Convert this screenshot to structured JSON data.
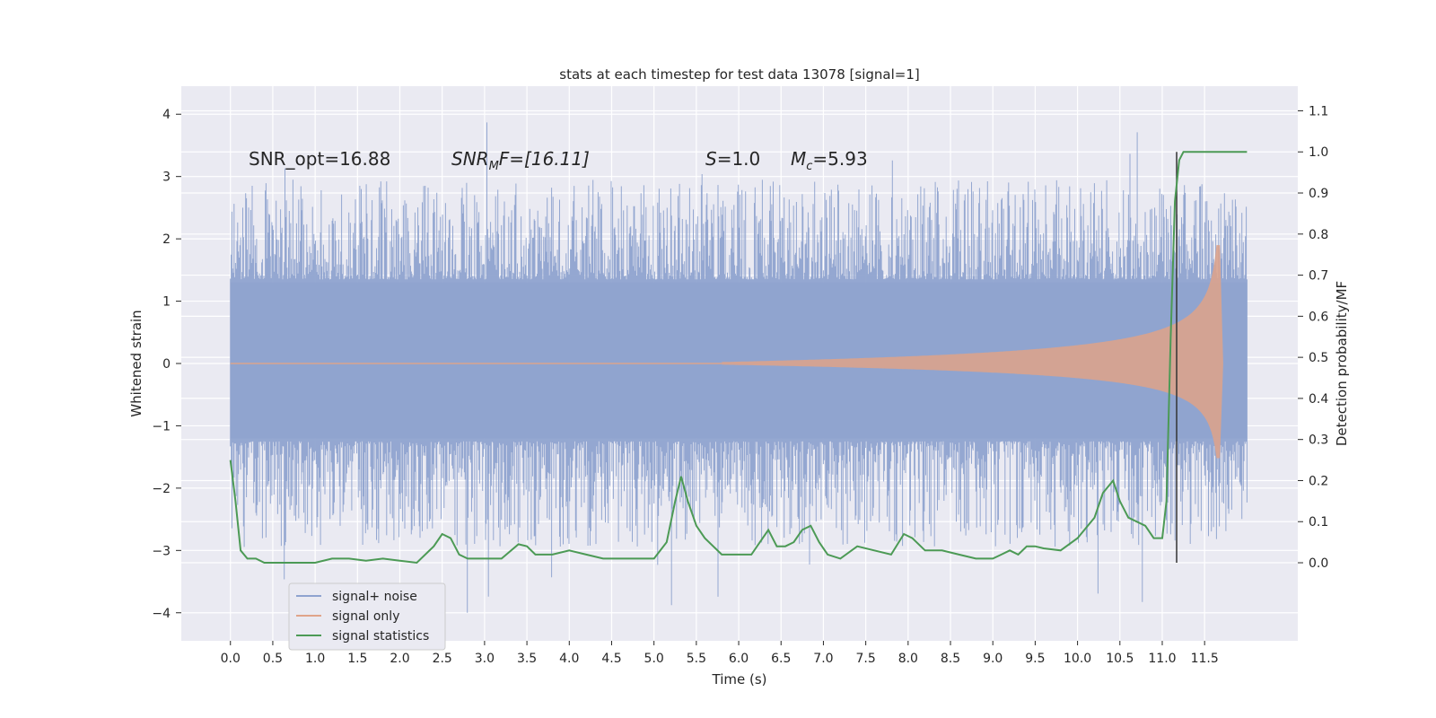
{
  "chart_data": {
    "type": "line",
    "title": "stats at each timestep for test data 13078 [signal=1]",
    "xlabel": "Time (s)",
    "ylabel": "Whitened strain",
    "y2label": "Detection probability/MF",
    "xlim": [
      -0.58,
      12.6
    ],
    "ylim": [
      -4.45,
      4.45
    ],
    "y2lim": [
      -0.19,
      1.16
    ],
    "x_ticks": [
      0.0,
      0.5,
      1.0,
      1.5,
      2.0,
      2.5,
      3.0,
      3.5,
      4.0,
      4.5,
      5.0,
      5.5,
      6.0,
      6.5,
      7.0,
      7.5,
      8.0,
      8.5,
      9.0,
      9.5,
      10.0,
      10.5,
      11.0,
      11.5
    ],
    "x_tick_labels": [
      "0.0",
      "0.5",
      "1.0",
      "1.5",
      "2.0",
      "2.5",
      "3.0",
      "3.5",
      "4.0",
      "4.5",
      "5.0",
      "5.5",
      "6.0",
      "6.5",
      "7.0",
      "7.5",
      "8.0",
      "8.5",
      "9.0",
      "9.5",
      "10.0",
      "10.5",
      "11.0",
      "11.5"
    ],
    "y_ticks": [
      4,
      3,
      2,
      1,
      0,
      -1,
      -2,
      -3,
      -4
    ],
    "y_tick_labels": [
      "4",
      "3",
      "2",
      "1",
      "0",
      "−1",
      "−2",
      "−3",
      "−4"
    ],
    "y2_ticks": [
      1.1,
      1.0,
      0.9,
      0.8,
      0.7,
      0.6,
      0.5,
      0.4,
      0.3,
      0.2,
      0.1,
      0.0
    ],
    "y2_tick_labels": [
      "1.1",
      "1.0",
      "0.9",
      "0.8",
      "0.7",
      "0.6",
      "0.5",
      "0.4",
      "0.3",
      "0.2",
      "0.1",
      "0.0"
    ],
    "annotations": {
      "snr_opt": "SNR_opt=16.88",
      "snr_mf": "SNR",
      "snr_mf_sub": "M",
      "snr_mf_rest": "F=[16.11]",
      "s_var": "S",
      "s_val": "=1.0",
      "mc_var": "M",
      "mc_sub": "c",
      "mc_val": "=5.93"
    },
    "vline_x": 11.17,
    "legend": {
      "placement": "lower-left",
      "entries": [
        {
          "label": "signal+ noise",
          "color": "#8fa3cf"
        },
        {
          "label": "signal only",
          "color": "#e0a48a"
        },
        {
          "label": "signal statistics",
          "color": "#4c9a55"
        }
      ]
    },
    "series": [
      {
        "name": "signal statistics",
        "axis": "right",
        "color": "#4c9a55",
        "x": [
          0.0,
          0.06,
          0.12,
          0.2,
          0.3,
          0.4,
          0.5,
          0.6,
          0.8,
          1.0,
          1.2,
          1.4,
          1.6,
          1.8,
          2.0,
          2.2,
          2.4,
          2.5,
          2.6,
          2.7,
          2.8,
          3.0,
          3.2,
          3.4,
          3.5,
          3.6,
          3.8,
          4.0,
          4.2,
          4.4,
          4.6,
          4.8,
          5.0,
          5.15,
          5.25,
          5.32,
          5.4,
          5.5,
          5.6,
          5.8,
          6.0,
          6.15,
          6.25,
          6.35,
          6.45,
          6.55,
          6.65,
          6.75,
          6.85,
          6.95,
          7.05,
          7.2,
          7.4,
          7.6,
          7.8,
          7.95,
          8.05,
          8.2,
          8.4,
          8.6,
          8.8,
          9.0,
          9.1,
          9.2,
          9.3,
          9.4,
          9.5,
          9.6,
          9.8,
          10.0,
          10.2,
          10.3,
          10.42,
          10.5,
          10.6,
          10.8,
          10.9,
          11.0,
          11.05,
          11.1,
          11.15,
          11.2,
          11.25,
          11.3,
          11.4,
          11.6,
          11.9,
          12.0
        ],
        "values": [
          0.25,
          0.15,
          0.03,
          0.01,
          0.01,
          0.0,
          0.0,
          0.0,
          0.0,
          0.0,
          0.01,
          0.01,
          0.005,
          0.01,
          0.005,
          0.0,
          0.04,
          0.07,
          0.06,
          0.02,
          0.01,
          0.01,
          0.01,
          0.045,
          0.04,
          0.02,
          0.02,
          0.03,
          0.02,
          0.01,
          0.01,
          0.01,
          0.01,
          0.05,
          0.15,
          0.21,
          0.15,
          0.09,
          0.06,
          0.02,
          0.02,
          0.02,
          0.05,
          0.08,
          0.04,
          0.04,
          0.05,
          0.08,
          0.09,
          0.05,
          0.02,
          0.01,
          0.04,
          0.03,
          0.02,
          0.07,
          0.06,
          0.03,
          0.03,
          0.02,
          0.01,
          0.01,
          0.02,
          0.03,
          0.02,
          0.04,
          0.04,
          0.035,
          0.03,
          0.06,
          0.11,
          0.17,
          0.2,
          0.15,
          0.11,
          0.09,
          0.06,
          0.06,
          0.15,
          0.55,
          0.88,
          0.98,
          1.0,
          1.0,
          1.0,
          1.0,
          1.0,
          1.0
        ]
      }
    ],
    "envelopes": [
      {
        "name": "signal+ noise",
        "axis": "left",
        "color": "#8fa3cf",
        "x_range": [
          0.0,
          12.0
        ],
        "typical_amplitude": [
          -1.2,
          1.3
        ],
        "peak_amplitude": [
          -4.05,
          4.1
        ]
      },
      {
        "name": "signal only",
        "axis": "left",
        "color": "#d9a38e",
        "x_range": [
          0.0,
          11.72
        ],
        "chirp_peak_amplitude": 1.9,
        "chirp_peak_time": 11.68
      }
    ]
  }
}
